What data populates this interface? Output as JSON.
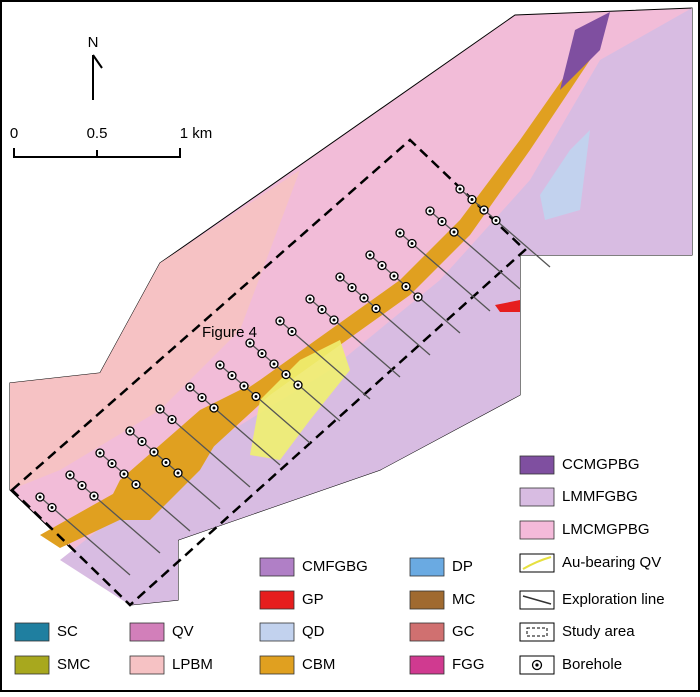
{
  "north": "N",
  "scale": {
    "labels": [
      "0",
      "0.5",
      "1 km"
    ]
  },
  "annotation": "Figure 4",
  "legend": {
    "items": [
      {
        "label": "SC",
        "color": "#1f7fa0"
      },
      {
        "label": "SMC",
        "color": "#a8a81e"
      },
      {
        "label": "QV",
        "color": "#d27fba"
      },
      {
        "label": "LPBM",
        "color": "#f6c2c4"
      },
      {
        "label": "CMFGBG",
        "color": "#b07fc6"
      },
      {
        "label": "GP",
        "color": "#e61e1e"
      },
      {
        "label": "QD",
        "color": "#c2d2ee"
      },
      {
        "label": "CBM",
        "color": "#e0a020"
      },
      {
        "label": "DP",
        "color": "#6aaae2"
      },
      {
        "label": "MC",
        "color": "#a06a30"
      },
      {
        "label": "GC",
        "color": "#d07070"
      },
      {
        "label": "FGG",
        "color": "#d03a90"
      },
      {
        "label": "CCMGPBG",
        "color": "#7f4fa0"
      },
      {
        "label": "LMMFGBG",
        "color": "#d8bce2"
      },
      {
        "label": "LMCMGPBG",
        "color": "#f4bada"
      },
      {
        "label": "Au-bearing QV"
      },
      {
        "label": "Exploration line"
      },
      {
        "label": "Study area"
      },
      {
        "label": "Borehole"
      }
    ]
  }
}
